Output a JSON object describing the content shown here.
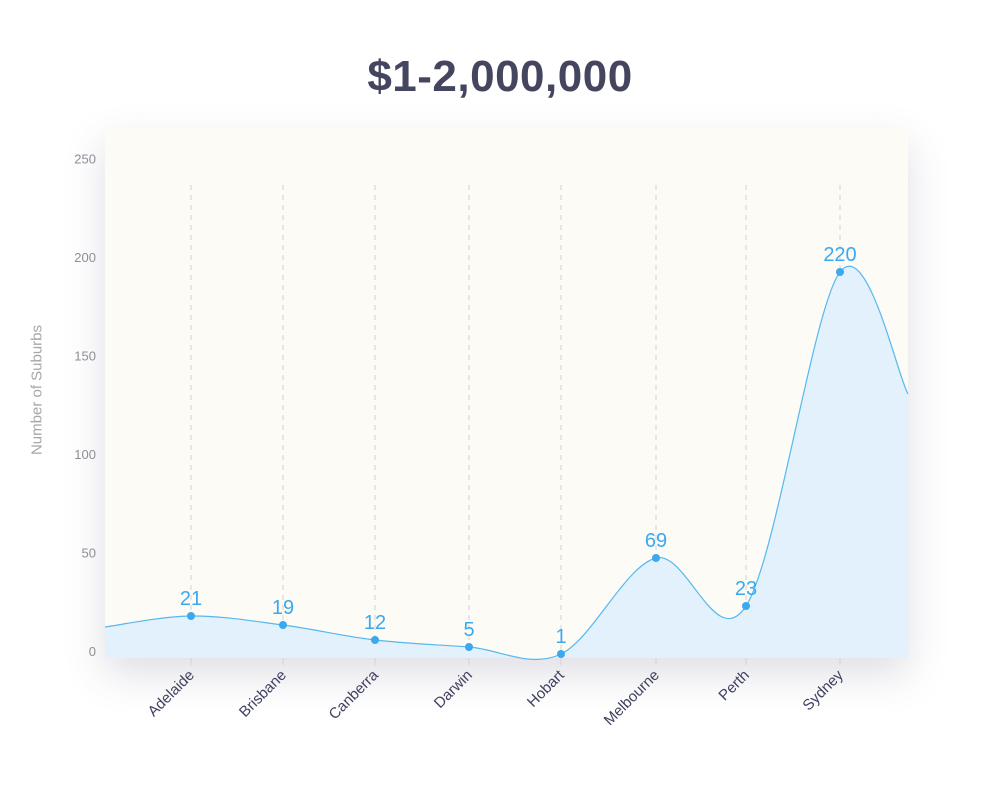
{
  "title": "$1-2,000,000",
  "chart_data": {
    "type": "area",
    "title": "$1-2,000,000",
    "ylabel": "Number of Suburbs",
    "xlabel": "",
    "categories": [
      "Adelaide",
      "Brisbane",
      "Canberra",
      "Darwin",
      "Hobart",
      "Melbourne",
      "Perth",
      "Sydney"
    ],
    "values": [
      21,
      19,
      12,
      5,
      1,
      69,
      23,
      220
    ],
    "yticks": [
      0,
      50,
      100,
      150,
      200,
      250
    ],
    "ylim": [
      0,
      250
    ],
    "grid": "vertical-dashed",
    "legend": "none"
  },
  "colors": {
    "line": "#56b8ef",
    "fill": "#e2f1fb",
    "point": "#3aa9ee",
    "label": "#3aa9ee",
    "grid": "#d9cfd3",
    "background": "#fcfbf5"
  }
}
